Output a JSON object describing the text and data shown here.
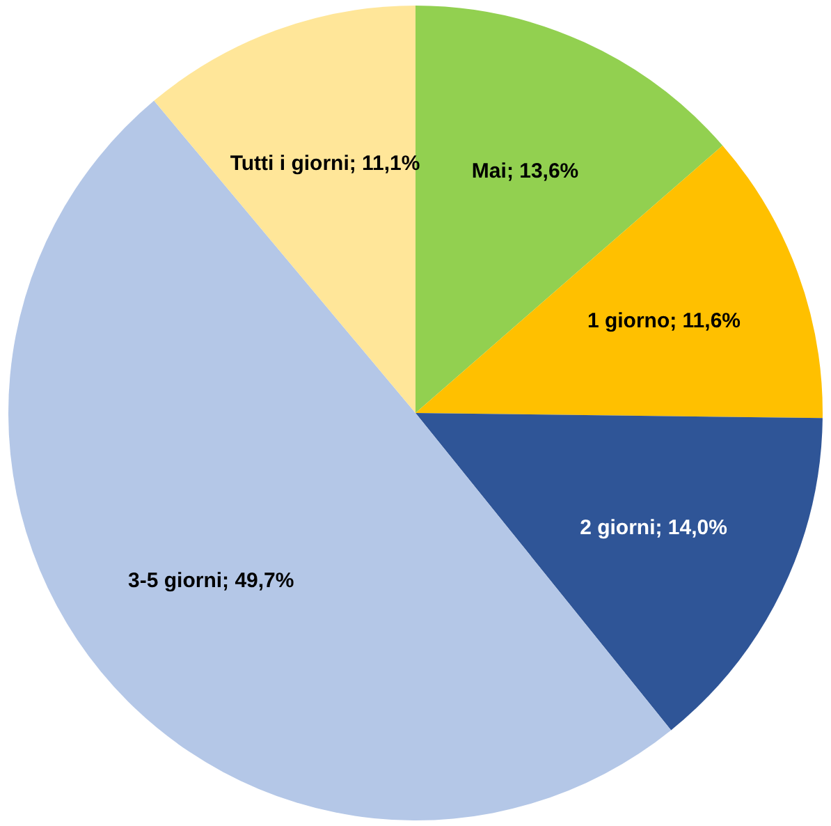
{
  "chart_data": {
    "type": "pie",
    "categories": [
      "Mai",
      "1 giorno",
      "2 giorni",
      "3-5 giorni",
      "Tutti i giorni"
    ],
    "values": [
      13.6,
      11.6,
      14.0,
      49.7,
      11.1
    ],
    "colors": [
      "#92d050",
      "#ffc000",
      "#2f5597",
      "#b4c7e7",
      "#ffe699"
    ],
    "value_labels": [
      "; 13,6%",
      "; 11,6%",
      "; 14,0%",
      "; 49,7%",
      "; 11,1%"
    ],
    "legend": false
  }
}
